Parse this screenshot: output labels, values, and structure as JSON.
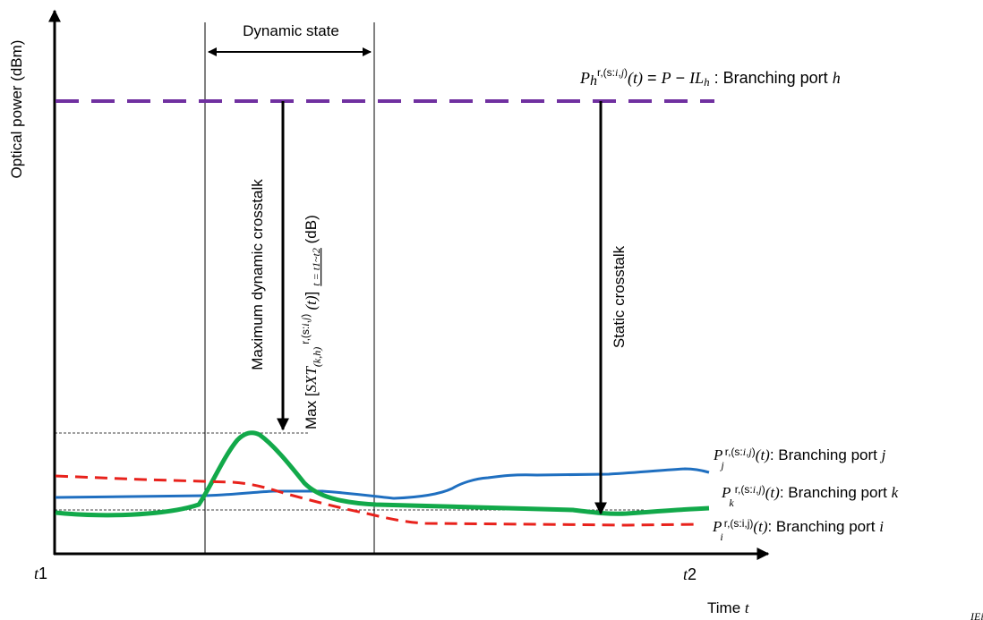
{
  "axes": {
    "y_label": "Optical power  (dBm)",
    "x_label_text": "Time ",
    "x_label_var": "t",
    "x_start_var": "t",
    "x_start_num": "1",
    "x_end_var": "t",
    "x_end_num": "2"
  },
  "dynamic_state_label": "Dynamic state",
  "branch_h": {
    "p": "P",
    "sub": "h",
    "sup": "r,(s:",
    "sup_i": "i",
    "sup_mid": ",",
    "sup_j": "j",
    "sup_end": ")",
    "t_open": "(",
    "t": "t",
    "t_close": ")",
    "eq": " = ",
    "rhs_p": "P",
    "minus": "  − ",
    "rhs_il": "IL",
    "rhs_sub": "h",
    "colon": " : ",
    "desc": "Branching port ",
    "port": "h"
  },
  "branch_j": {
    "p": "P",
    "sub": "j",
    "sup": "r,(s:",
    "sup_i": "i",
    "sup_mid": ",",
    "sup_j": "j",
    "sup_end": ")",
    "t_open": "(",
    "t": "t",
    "t_close": ")",
    "desc": ": Branching port ",
    "port": "j"
  },
  "branch_k": {
    "p": "P",
    "sub": "k",
    "sup": "r,(s:",
    "sup_i": "i",
    "sup_mid": ",",
    "sup_j": "j",
    "sup_end": ")",
    "t_open": "(",
    "t": "t",
    "t_close": ")",
    "desc": ": Branching port ",
    "port": "k"
  },
  "branch_i": {
    "p": "P",
    "sub": "i",
    "sup": "r,(s:i,j)",
    "t_open": "(",
    "t": "t",
    "t_close": ")",
    "desc": ": Branching port ",
    "port": "i"
  },
  "max_dyn_label": "Maximum dynamic crosstalk",
  "max_formula": {
    "max": "Max [",
    "sxt": "SXT",
    "sub": "(k,h)",
    "sup": "r,(s:",
    "sup_i": "i",
    "sup_mid": ",",
    "sup_j": "j",
    "sup_end": ")",
    "t_paren": " (t)",
    "bracket": "]",
    "range": "t = t1~t2",
    "unit": " (dB)"
  },
  "static_label": "Static crosstalk",
  "corner_text": "IEi",
  "colors": {
    "purple": "#7030A0",
    "blue": "#1F6FC0",
    "green": "#12A94A",
    "red": "#E8221C",
    "axis": "#000000"
  }
}
